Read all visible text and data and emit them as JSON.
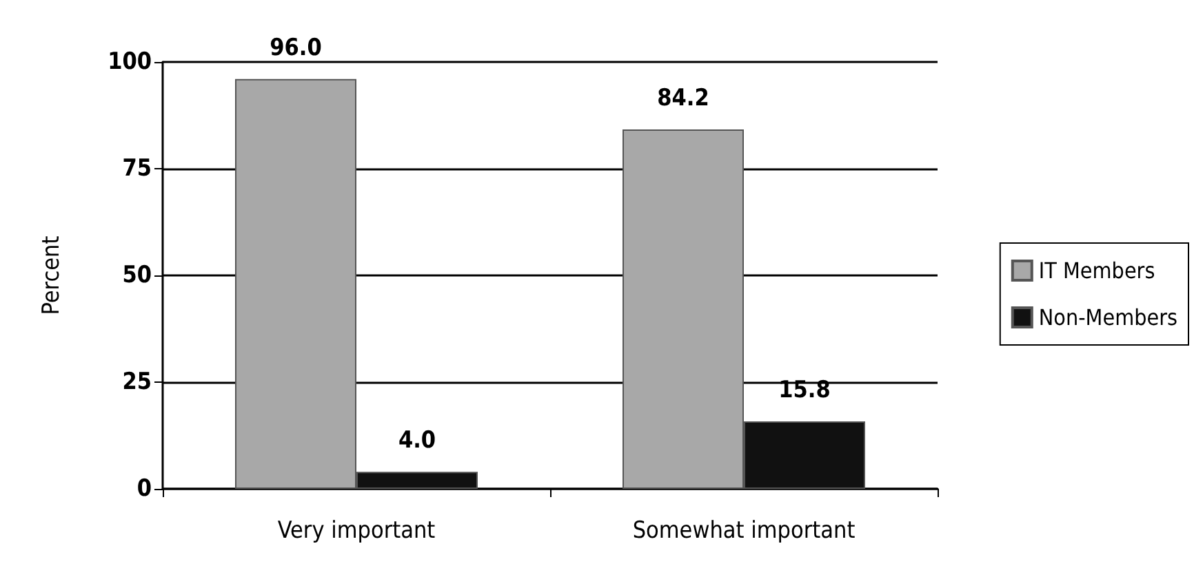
{
  "chart_data": {
    "type": "bar",
    "ylabel": "Percent",
    "categories": [
      "Very important",
      "Somewhat important"
    ],
    "series": [
      {
        "name": "IT Members",
        "color": "#a8a8a8",
        "values": [
          96.0,
          84.2
        ],
        "value_labels": [
          "96.0",
          "84.2"
        ]
      },
      {
        "name": "Non-Members",
        "color": "#111111",
        "values": [
          4.0,
          15.8
        ],
        "value_labels": [
          "4.0",
          "15.8"
        ]
      }
    ],
    "ylim": [
      0,
      100
    ],
    "yticks": [
      0,
      25,
      50,
      75,
      100
    ],
    "grid": "y",
    "legend": "right"
  }
}
